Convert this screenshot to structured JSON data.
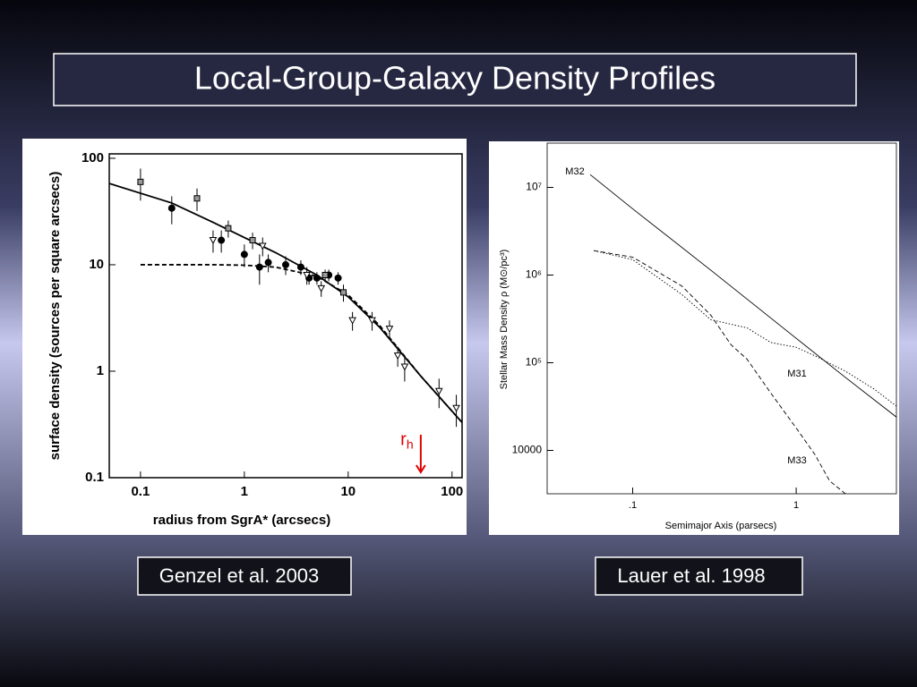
{
  "title": "Local-Group-Galaxy Density Profiles",
  "captions": [
    "Genzel et al. 2003",
    "Lauer et al. 1998"
  ],
  "chart_data": [
    {
      "type": "scatter",
      "xlabel": "radius from SgrA* (arcsecs)",
      "ylabel": "surface density (sources per square arcsecs)",
      "xscale": "log",
      "yscale": "log",
      "xlim": [
        0.05,
        125
      ],
      "ylim": [
        0.1,
        110
      ],
      "xticks": [
        0.1,
        1,
        10,
        100
      ],
      "yticks": [
        0.1,
        1,
        10,
        100
      ],
      "annotation": {
        "text": "r",
        "subscript": "h",
        "x": 50,
        "color": "#e00000"
      },
      "series": [
        {
          "color": "#000000",
          "dash": "solid",
          "x": [
            0.05,
            0.2,
            0.5,
            1,
            2,
            5,
            10,
            20,
            50,
            125
          ],
          "values": [
            58,
            38,
            25,
            18,
            13,
            8,
            5,
            2.6,
            0.9,
            0.33
          ]
        },
        {
          "color": "#000000",
          "dash": "dashed",
          "x": [
            0.1,
            0.5,
            1,
            2,
            5,
            10,
            20,
            50,
            125
          ],
          "values": [
            10,
            10,
            9.9,
            9.5,
            7.8,
            5.2,
            2.7,
            0.9,
            0.33
          ]
        },
        {
          "color": "#000000",
          "marker": "circle",
          "x": [
            0.2,
            0.6,
            1.0,
            1.4,
            1.7,
            2.5,
            3.5,
            4.2,
            5,
            6.5,
            8
          ],
          "values": [
            34,
            17,
            12.5,
            9.5,
            10.5,
            10,
            9.5,
            7.5,
            7.5,
            8,
            7.5
          ],
          "errors": [
            10,
            4,
            3,
            3,
            2,
            2,
            1.5,
            1,
            1,
            1,
            1
          ]
        },
        {
          "color": "#000000",
          "marker": "square",
          "x": [
            0.1,
            0.35,
            0.7,
            1.2,
            6,
            9
          ],
          "values": [
            60,
            42,
            22,
            17,
            8,
            5.5
          ],
          "errors": [
            20,
            10,
            4,
            3,
            1,
            1
          ]
        },
        {
          "color": "#000000",
          "marker": "triangle",
          "x": [
            0.5,
            1.5,
            4,
            5.5,
            11,
            17,
            25,
            30,
            35,
            75,
            110
          ],
          "values": [
            17,
            15,
            8,
            6,
            3,
            3,
            2.5,
            1.4,
            1.1,
            0.65,
            0.45
          ],
          "errors": [
            4,
            3,
            1.5,
            1,
            0.6,
            0.6,
            0.5,
            0.3,
            0.3,
            0.2,
            0.15
          ]
        }
      ]
    },
    {
      "type": "line",
      "xlabel": "Semimajor Axis (parsecs)",
      "ylabel": "Stellar Mass Density ρ (M⊙/pc³)",
      "xscale": "log",
      "yscale": "log",
      "xlim": [
        0.03,
        4.1
      ],
      "ylim": [
        3200,
        32000000
      ],
      "xticks": [
        {
          "value": 0.1,
          "label": ".1"
        },
        1
      ],
      "yticks": [
        10000,
        {
          "value": 100000,
          "label": "10⁵"
        },
        {
          "value": 1000000,
          "label": "10⁶"
        },
        {
          "value": 10000000,
          "label": "10⁷"
        }
      ],
      "series": [
        {
          "name": "M32",
          "color": "#000000",
          "dash": "solid",
          "x": [
            0.055,
            0.1,
            0.3,
            1,
            2,
            4.1
          ],
          "values": [
            14000000,
            5700000,
            1140000,
            190000,
            68000,
            24000
          ]
        },
        {
          "name": "M31",
          "color": "#000000",
          "dash": "dotted",
          "x": [
            0.058,
            0.1,
            0.2,
            0.3,
            0.5,
            0.7,
            1,
            1.3,
            2,
            3,
            4.1
          ],
          "values": [
            1900000,
            1500000,
            600000,
            310000,
            250000,
            170000,
            150000,
            120000,
            80000,
            50000,
            32000
          ]
        },
        {
          "name": "M33",
          "color": "#000000",
          "dash": "dashed",
          "x": [
            0.058,
            0.1,
            0.2,
            0.3,
            0.4,
            0.5,
            0.7,
            1,
            1.3,
            1.6,
            2
          ],
          "values": [
            1900000,
            1600000,
            750000,
            350000,
            160000,
            110000,
            45000,
            18000,
            9000,
            4500,
            3200
          ]
        }
      ]
    }
  ]
}
